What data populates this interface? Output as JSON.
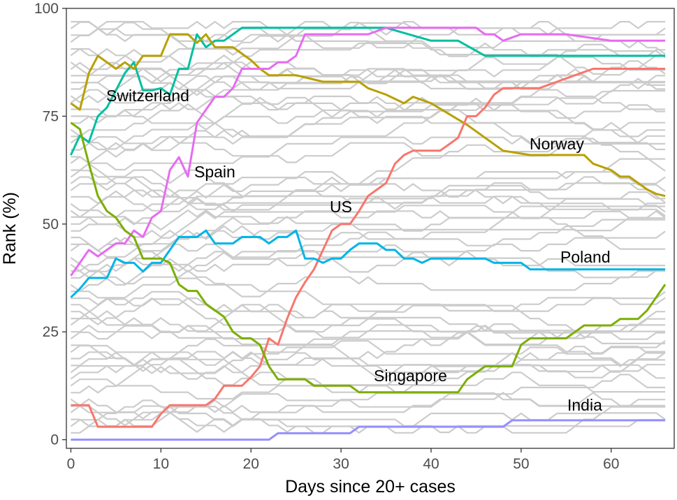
{
  "chart_data": {
    "type": "line",
    "xlabel": "Days since 20+ cases",
    "ylabel": "Rank (%)",
    "xlim": [
      -0.5,
      67
    ],
    "ylim": [
      -2,
      100
    ],
    "x_ticks": [
      0,
      10,
      20,
      30,
      40,
      50,
      60
    ],
    "y_ticks": [
      0,
      25,
      50,
      75,
      100
    ],
    "grid": false,
    "legend": "none",
    "background_series_color": "#cccccc",
    "background_ranks": [
      1.6,
      3.1,
      4.7,
      6.3,
      7.8,
      9.4,
      10.9,
      12.5,
      14.1,
      15.6,
      17.2,
      18.8,
      20.3,
      21.9,
      23.4,
      25.0,
      26.6,
      28.1,
      29.7,
      31.3,
      32.8,
      34.4,
      35.9,
      37.5,
      39.1,
      40.6,
      42.2,
      43.8,
      45.3,
      46.9,
      48.4,
      50.0,
      51.6,
      53.1,
      54.7,
      56.3,
      57.8,
      59.4,
      60.9,
      62.5,
      64.1,
      65.6,
      67.2,
      68.8,
      70.3,
      71.9,
      73.4,
      75.0,
      76.6,
      78.1,
      79.7,
      81.3,
      82.8,
      84.4,
      85.9,
      87.5,
      89.1,
      90.6,
      92.2,
      93.8,
      95.3,
      96.9
    ],
    "series": [
      {
        "name": "Switzerland",
        "color": "#00BFA0",
        "x": [
          0,
          1,
          2,
          3,
          4,
          5,
          6,
          7,
          8,
          9,
          10,
          11,
          12,
          13,
          14,
          15,
          16,
          17,
          18,
          19,
          20,
          30,
          35,
          40,
          43,
          46,
          50,
          60,
          66
        ],
        "y": [
          66,
          70.5,
          69,
          75,
          77,
          81,
          85,
          87.5,
          81,
          81,
          81.5,
          80,
          86,
          86,
          94,
          91,
          92.5,
          92.5,
          94,
          95.5,
          95.5,
          95.5,
          95.5,
          92.5,
          92.5,
          89,
          89,
          89,
          89
        ]
      },
      {
        "name": "Norway",
        "color": "#B8A000",
        "x": [
          0,
          1,
          2,
          3,
          4,
          5,
          6,
          7,
          8,
          9,
          10,
          11,
          12,
          13,
          14,
          15,
          16,
          17,
          18,
          19,
          20,
          21,
          22,
          25,
          28,
          30,
          32,
          33,
          35,
          37,
          38,
          40,
          44,
          48,
          51,
          55,
          57,
          58,
          60,
          61,
          62,
          63,
          64,
          65,
          66
        ],
        "y": [
          78,
          76.5,
          85,
          89,
          87.5,
          86,
          87.5,
          86,
          89,
          89,
          89,
          94,
          94,
          94,
          92,
          94,
          91,
          91,
          91,
          89.5,
          88,
          86,
          84.5,
          84.5,
          83,
          83,
          83,
          81.5,
          80,
          78,
          79.5,
          78,
          73,
          67,
          66,
          66,
          66,
          64,
          62.5,
          61,
          61,
          59.5,
          58,
          57,
          56.5
        ]
      },
      {
        "name": "Spain",
        "color": "#E76BF3",
        "x": [
          0,
          1,
          2,
          3,
          4,
          5,
          6,
          7,
          8,
          9,
          10,
          11,
          12,
          13,
          14,
          15,
          16,
          17,
          18,
          19,
          20,
          21,
          22,
          23,
          24,
          25,
          26,
          27,
          28,
          30,
          33,
          35,
          40,
          45,
          46,
          47,
          48,
          50,
          55,
          60,
          66
        ],
        "y": [
          38,
          41,
          44,
          42.5,
          44,
          45.5,
          45.5,
          48.5,
          47,
          51.5,
          53,
          62.5,
          65.5,
          61,
          73.5,
          76.5,
          79.5,
          79.5,
          81.5,
          86,
          86,
          86,
          86,
          87.5,
          87.5,
          89,
          94,
          94,
          94,
          94,
          94,
          95.5,
          95.5,
          95.5,
          94,
          94,
          92.5,
          94,
          94,
          92.5,
          92.5
        ]
      },
      {
        "name": "US",
        "color": "#F8766D",
        "x": [
          0,
          1,
          2,
          3,
          4,
          5,
          6,
          7,
          8,
          9,
          10,
          11,
          12,
          13,
          14,
          15,
          16,
          17,
          18,
          19,
          20,
          21,
          22,
          23,
          24,
          25,
          26,
          27,
          28,
          29,
          30,
          31,
          32,
          33,
          34,
          35,
          36,
          37,
          38,
          39,
          40,
          41,
          42,
          43,
          44,
          45,
          46,
          47,
          48,
          50,
          52,
          54,
          56,
          58,
          60,
          62,
          64,
          66
        ],
        "y": [
          8,
          8,
          8,
          3,
          3,
          3,
          3,
          3,
          3,
          3,
          6,
          8,
          8,
          8,
          8,
          8,
          9.5,
          12.5,
          12.5,
          12.5,
          14.5,
          17,
          23.5,
          22,
          28,
          33,
          36.5,
          39.5,
          44,
          48.5,
          50,
          50,
          53,
          56.5,
          58,
          59.5,
          64,
          66,
          67,
          67,
          67,
          67,
          68.5,
          70,
          75,
          75,
          77,
          80,
          81.5,
          81.5,
          81.5,
          83,
          84.5,
          86,
          86,
          86,
          86,
          86
        ]
      },
      {
        "name": "Poland",
        "color": "#00B4E6",
        "x": [
          0,
          1,
          2,
          3,
          4,
          5,
          6,
          7,
          8,
          9,
          10,
          11,
          12,
          13,
          14,
          15,
          16,
          17,
          18,
          19,
          20,
          21,
          22,
          23,
          24,
          25,
          26,
          27,
          28,
          29,
          30,
          31,
          32,
          33,
          34,
          35,
          36,
          37,
          38,
          39,
          40,
          45,
          46,
          47,
          50,
          51,
          55,
          60,
          66
        ],
        "y": [
          33,
          35,
          37.5,
          37.5,
          37.5,
          42,
          41,
          41,
          39,
          41,
          41,
          44,
          47,
          47,
          47,
          48.5,
          45.5,
          45.5,
          45.5,
          47,
          47,
          47,
          45.5,
          47,
          47,
          48.5,
          42,
          42,
          41,
          42,
          42,
          44,
          45.5,
          45.5,
          45.5,
          44,
          44,
          42,
          42,
          41,
          42,
          42,
          42,
          41,
          41,
          39.5,
          39.5,
          39.5,
          39.5
        ]
      },
      {
        "name": "Singapore",
        "color": "#7CAE00",
        "x": [
          0,
          1,
          2,
          3,
          4,
          5,
          6,
          7,
          8,
          9,
          10,
          11,
          12,
          13,
          14,
          15,
          16,
          17,
          18,
          19,
          20,
          21,
          22,
          23,
          24,
          25,
          26,
          27,
          30,
          31,
          32,
          35,
          40,
          43,
          44,
          45,
          46,
          47,
          48,
          49,
          50,
          51,
          52,
          53,
          54,
          55,
          56,
          57,
          58,
          59,
          60,
          61,
          62,
          63,
          64,
          65,
          66
        ],
        "y": [
          73.5,
          72,
          64,
          56.5,
          53,
          51.5,
          48.5,
          47,
          42,
          42,
          42,
          41,
          36,
          34.5,
          34.5,
          31.5,
          30,
          28.5,
          25,
          23.5,
          23.5,
          22,
          17,
          14,
          14,
          14,
          14,
          12.5,
          12.5,
          12.5,
          11,
          11,
          11,
          11,
          14,
          15.5,
          17,
          17,
          17,
          17,
          22,
          23.5,
          23.5,
          23.5,
          23.5,
          23.5,
          25,
          26.5,
          26.5,
          26.5,
          26.5,
          28,
          28,
          28,
          30,
          33,
          36
        ]
      },
      {
        "name": "India",
        "color": "#9590FF",
        "x": [
          0,
          10,
          20,
          22,
          23,
          24,
          30,
          31,
          32,
          40,
          48,
          49,
          50,
          60,
          66
        ],
        "y": [
          0,
          0,
          0,
          0,
          1.5,
          1.5,
          1.5,
          1.5,
          3,
          3,
          3,
          4.5,
          4.5,
          4.5,
          4.5
        ]
      }
    ]
  },
  "series_labels": {
    "switzerland": "Switzerland",
    "spain": "Spain",
    "us": "US",
    "norway": "Norway",
    "poland": "Poland",
    "singapore": "Singapore",
    "india": "India"
  },
  "axis": {
    "xlabel": "Days since 20+ cases",
    "ylabel": "Rank (%)",
    "x_tick_labels": [
      "0",
      "10",
      "20",
      "30",
      "40",
      "50",
      "60"
    ],
    "y_tick_labels": [
      "0",
      "25",
      "50",
      "75",
      "100"
    ]
  }
}
